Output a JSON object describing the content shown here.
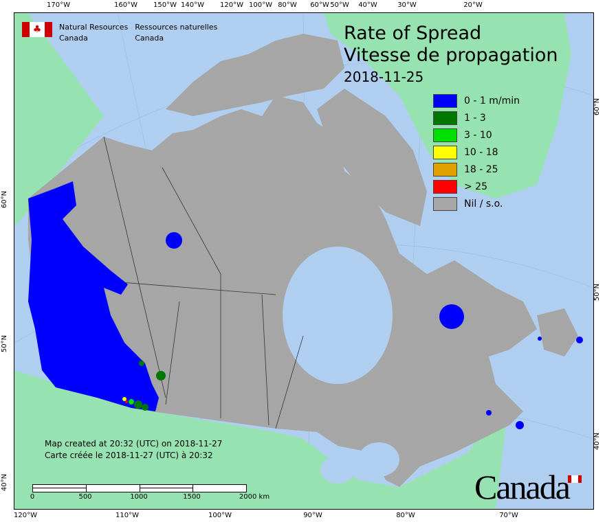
{
  "title": {
    "en": "Rate of Spread",
    "fr": "Vitesse de propagation",
    "date": "2018-11-25"
  },
  "agency": {
    "en_line1": "Natural Resources",
    "en_line2": "Canada",
    "fr_line1": "Ressources naturelles",
    "fr_line2": "Canada"
  },
  "legend": [
    {
      "label": "0 - 1 m/min",
      "color": "#0000ff"
    },
    {
      "label": "1 - 3",
      "color": "#007800"
    },
    {
      "label": "3 - 10",
      "color": "#00e000"
    },
    {
      "label": "10 - 18",
      "color": "#ffff00"
    },
    {
      "label": "18 - 25",
      "color": "#e0a000"
    },
    {
      "label": "> 25",
      "color": "#ff0000"
    },
    {
      "label": "Nil / s.o.",
      "color": "#a6a6a6"
    }
  ],
  "credit": {
    "en": "Map created at 20:32 (UTC) on 2018-11-27",
    "fr": "Carte créée le 2018-11-27 (UTC) à 20:32"
  },
  "scale": {
    "labels": [
      "0",
      "500",
      "1000",
      "1500",
      "2000  km"
    ]
  },
  "wordmark": "Canada",
  "ticks": {
    "top": [
      "170°W",
      "160°W",
      "150°W",
      "140°W",
      "120°W",
      "100°W",
      "80°W",
      "60°W",
      "50°W",
      "40°W",
      "30°W",
      "20°W"
    ],
    "bottom": [
      "120°W",
      "110°W",
      "100°W",
      "90°W",
      "80°W",
      "70°W"
    ],
    "left": [
      "60°N",
      "50°N",
      "40°N"
    ],
    "right": [
      "60°N",
      "50°N",
      "40°N"
    ]
  },
  "colors": {
    "water": "#b0cff0",
    "land": "#96e2b0",
    "canada": "#a6a6a6"
  }
}
